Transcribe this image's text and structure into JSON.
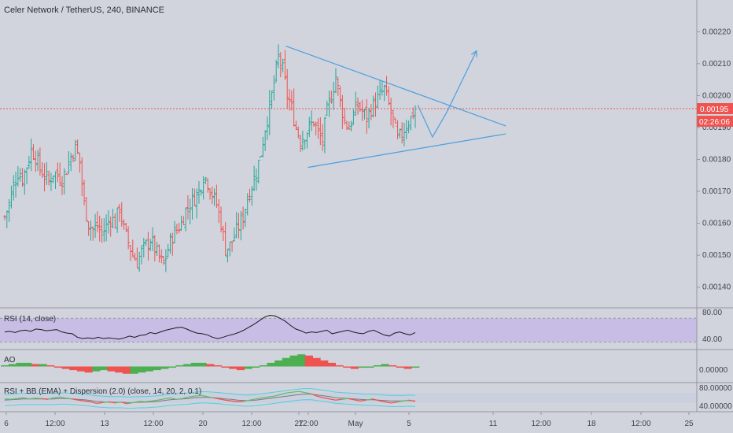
{
  "header": {
    "title": "Celer Network / TetherUS, 240, BINANCE"
  },
  "colors": {
    "background": "#d1d4dc",
    "up": "#26a69a",
    "down": "#ef5350",
    "trendline": "#4a9fe0",
    "price_line": "#ef5350",
    "rsi_band": "#c7b8e6",
    "rsi_line": "#1a1a1a",
    "ao_up": "#4caf50",
    "ao_down": "#ef5350",
    "bb_band": "#4dd0e1",
    "bb_rsi_up": "#66bb6a",
    "bb_rsi_down": "#ef5350"
  },
  "price_axis": {
    "ticks": [
      "0.00220",
      "0.00210",
      "0.00200",
      "0.00190",
      "0.00180",
      "0.00170",
      "0.00160",
      "0.00150",
      "0.00140"
    ],
    "current_price": "0.00195",
    "countdown": "02:26:06"
  },
  "time_axis": {
    "ticks": [
      "6",
      "12:00",
      "13",
      "12:00",
      "20",
      "12:00",
      "27",
      "12:00",
      "May",
      "5",
      "11",
      "12:00",
      "18",
      "12:00",
      "25"
    ]
  },
  "panes": {
    "rsi": {
      "label": "RSI (14, close)",
      "ticks": [
        "80.00",
        "40.00"
      ]
    },
    "ao": {
      "label": "AO",
      "ticks": [
        "0.00000"
      ]
    },
    "rsi_bb": {
      "label": "RSI + BB (EMA) + Dispersion (2.0) (close, 14, 20, 2, 0.1)",
      "ticks": [
        "80.00000",
        "40.00000"
      ]
    }
  },
  "chart_data": [
    {
      "type": "candlestick",
      "title": "Celer Network / TetherUS, 240, BINANCE",
      "xlabel": "",
      "ylabel": "",
      "ylim": [
        0.00135,
        0.00225
      ],
      "grid": false,
      "current_price": 0.00195,
      "annotations": [
        {
          "type": "trendline",
          "name": "upper",
          "x": [
            0.39,
            0.69
          ],
          "y": [
            0.002155,
            0.001905
          ]
        },
        {
          "type": "trendline",
          "name": "lower",
          "x": [
            0.42,
            0.69
          ],
          "y": [
            0.001775,
            0.00188
          ]
        },
        {
          "type": "projection",
          "name": "arrow",
          "x": [
            0.57,
            0.59,
            0.61,
            0.65
          ],
          "y": [
            0.00197,
            0.00187,
            0.00195,
            0.00214
          ]
        }
      ],
      "series_shape": [
        0.00162,
        0.00166,
        0.00172,
        0.00176,
        0.00174,
        0.00178,
        0.00183,
        0.00181,
        0.00177,
        0.00175,
        0.00173,
        0.00176,
        0.00175,
        0.00174,
        0.00177,
        0.00181,
        0.00184,
        0.00179,
        0.00166,
        0.0016,
        0.00158,
        0.00159,
        0.00157,
        0.00159,
        0.00162,
        0.0016,
        0.00165,
        0.00158,
        0.00154,
        0.0015,
        0.00148,
        0.00151,
        0.00153,
        0.00155,
        0.00152,
        0.00149,
        0.00147,
        0.00152,
        0.00156,
        0.00158,
        0.0016,
        0.00164,
        0.00166,
        0.00168,
        0.0017,
        0.00175,
        0.00173,
        0.00169,
        0.00166,
        0.0016,
        0.00152,
        0.00153,
        0.00156,
        0.00159,
        0.00162,
        0.00168,
        0.00172,
        0.00176,
        0.00182,
        0.0019,
        0.00196,
        0.00204,
        0.00212,
        0.00208,
        0.002,
        0.00196,
        0.0019,
        0.00186,
        0.00188,
        0.0019,
        0.00192,
        0.00188,
        0.00186,
        0.00195,
        0.002,
        0.00206,
        0.00198,
        0.00192,
        0.0019,
        0.00194,
        0.00197,
        0.00195,
        0.00193,
        0.00196,
        0.00198,
        0.002,
        0.00202,
        0.00197,
        0.00192,
        0.00186,
        0.00188,
        0.00191,
        0.00193,
        0.00196
      ]
    },
    {
      "type": "line",
      "title": "RSI (14, close)",
      "ylim": [
        20,
        85
      ],
      "series": [
        {
          "values": [
            47,
            48,
            46,
            49,
            50,
            48,
            52,
            51,
            49,
            50,
            51,
            47,
            45,
            44,
            38,
            36,
            37,
            36,
            38,
            36,
            37,
            36,
            35,
            37,
            40,
            38,
            41,
            42,
            46,
            44,
            47,
            50,
            52,
            54,
            55,
            52,
            48,
            45,
            44,
            42,
            38,
            36,
            38,
            41,
            43,
            46,
            50,
            55,
            60,
            66,
            72,
            75,
            74,
            70,
            65,
            58,
            52,
            49,
            45,
            47,
            46,
            48,
            50,
            44,
            46,
            48,
            50,
            47,
            45,
            44,
            48,
            50,
            46,
            42,
            40,
            45,
            47,
            44,
            42,
            46
          ]
        }
      ]
    },
    {
      "type": "bar",
      "title": "AO",
      "ylim": [
        -0.00012,
        0.00012
      ],
      "series": [
        {
          "values": [
            1e-05,
            2e-05,
            3e-05,
            3e-05,
            2e-05,
            2e-05,
            1e-05,
            -1e-05,
            -2e-05,
            -3e-05,
            -4e-05,
            -5e-05,
            -4e-05,
            -3e-05,
            -4e-05,
            -5e-05,
            -6e-05,
            -6e-05,
            -5e-05,
            -4e-05,
            -3e-05,
            -2e-05,
            -1e-05,
            1e-05,
            2e-05,
            3e-05,
            3e-05,
            2e-05,
            1e-05,
            -1e-05,
            -2e-05,
            -3e-05,
            -2e-05,
            -1e-05,
            1e-05,
            3e-05,
            5e-05,
            7e-05,
            9e-05,
            0.0001,
            9e-05,
            7e-05,
            5e-05,
            3e-05,
            1e-05,
            -1e-05,
            -2e-05,
            -1e-05,
            -1e-05,
            1e-05,
            2e-05,
            1e-05,
            -1e-05,
            -2e-05,
            -1e-05
          ]
        }
      ]
    },
    {
      "type": "line",
      "title": "RSI + BB (EMA) + Dispersion (2.0) (close, 14, 20, 2, 0.1)",
      "ylim": [
        25,
        90
      ],
      "series": [
        {
          "values": [
            55,
            54,
            56,
            58,
            55,
            57,
            56,
            54,
            58,
            60,
            57,
            55,
            52,
            50,
            48,
            44,
            46,
            48,
            45,
            47,
            43,
            46,
            49,
            48,
            50,
            52,
            55,
            58,
            54,
            56,
            60,
            62,
            64,
            61,
            58,
            55,
            52,
            50,
            48,
            49,
            52,
            55,
            58,
            60,
            62,
            66,
            70,
            72,
            74,
            71,
            68,
            62,
            58,
            55,
            52,
            54,
            56,
            53,
            50,
            52,
            55,
            51,
            48,
            45,
            47,
            50,
            52,
            49
          ]
        },
        {
          "values": [
            52,
            53,
            54,
            55,
            55,
            55,
            55,
            55,
            55,
            56,
            56,
            55,
            54,
            53,
            51,
            49,
            48,
            47,
            47,
            47,
            46,
            46,
            47,
            47,
            48,
            49,
            51,
            53,
            54,
            55,
            56,
            58,
            59,
            59,
            58,
            57,
            55,
            54,
            52,
            51,
            51,
            52,
            54,
            56,
            58,
            60,
            62,
            64,
            66,
            67,
            67,
            65,
            63,
            61,
            58,
            57,
            56,
            55,
            54,
            53,
            53,
            52,
            51,
            50,
            50,
            50,
            51,
            50
          ]
        }
      ]
    }
  ]
}
